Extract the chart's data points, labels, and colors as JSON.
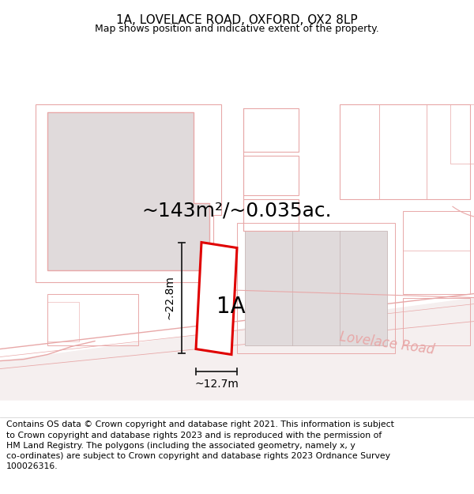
{
  "title": "1A, LOVELACE ROAD, OXFORD, OX2 8LP",
  "subtitle": "Map shows position and indicative extent of the property.",
  "area_label": "~143m²/~0.035ac.",
  "plot_label": "1A",
  "dim_height": "~22.8m",
  "dim_width": "~12.7m",
  "road_label": "Lovelace Road",
  "footer_text": "Contains OS data © Crown copyright and database right 2021. This information is subject\nto Crown copyright and database rights 2023 and is reproduced with the permission of\nHM Land Registry. The polygons (including the associated geometry, namely x, y\nco-ordinates) are subject to Crown copyright and database rights 2023 Ordnance Survey\n100026316.",
  "bg_color": "#ffffff",
  "map_bg": "#f9f6f6",
  "building_gray": "#e0dadb",
  "road_line_color": "#e8a8a8",
  "road_fill": "#f9f4f4",
  "plot_color": "#e00000",
  "dim_color": "#222222",
  "title_fontsize": 11,
  "subtitle_fontsize": 9,
  "area_fontsize": 18,
  "plot_label_fontsize": 20,
  "road_label_fontsize": 12,
  "footer_fontsize": 7.8
}
